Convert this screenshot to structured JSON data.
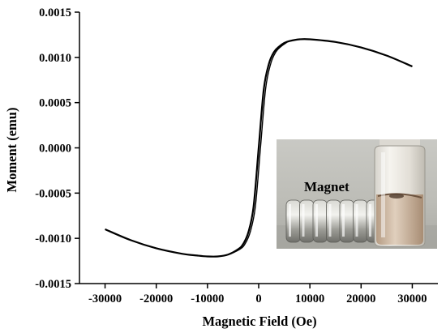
{
  "chart_data": {
    "type": "line",
    "title": "",
    "xlabel": "Magnetic Field (Oe)",
    "ylabel": "Moment (emu)",
    "xlim": [
      -35000,
      35000
    ],
    "ylim": [
      -0.0015,
      0.0015
    ],
    "xticks": [
      -30000,
      -20000,
      -10000,
      0,
      10000,
      20000,
      30000
    ],
    "xtick_labels": [
      "-30000",
      "-20000",
      "-10000",
      "0",
      "10000",
      "20000",
      "30000"
    ],
    "yticks": [
      -0.0015,
      -0.001,
      -0.0005,
      0.0,
      0.0005,
      0.001,
      0.0015
    ],
    "ytick_labels": [
      "-0.0015",
      "-0.0010",
      "-0.0005",
      "0.0000",
      "0.0005",
      "0.0010",
      "0.0015"
    ],
    "grid": false,
    "legend": "none",
    "series": [
      {
        "color": "#000000",
        "x": [
          -30000,
          -25000,
          -20000,
          -15000,
          -12000,
          -10000,
          -8000,
          -6000,
          -4000,
          -3000,
          -2000,
          -1000,
          0,
          1000,
          2000,
          3000,
          4000,
          5000,
          6000,
          8000,
          10000,
          15000,
          20000,
          25000,
          30000
        ],
        "y": [
          -0.0009,
          -0.00102,
          -0.00111,
          -0.00117,
          -0.00119,
          -0.0012,
          -0.0012,
          -0.00118,
          -0.00112,
          -0.00106,
          -0.00093,
          -0.00065,
          0.0,
          0.00065,
          0.00093,
          0.00106,
          0.00112,
          0.00116,
          0.00118,
          0.0012,
          0.0012,
          0.00117,
          0.00111,
          0.00102,
          0.0009
        ]
      }
    ]
  },
  "inset": {
    "label": "Magnet",
    "description_icon": "magnet-and-vial-photo"
  }
}
